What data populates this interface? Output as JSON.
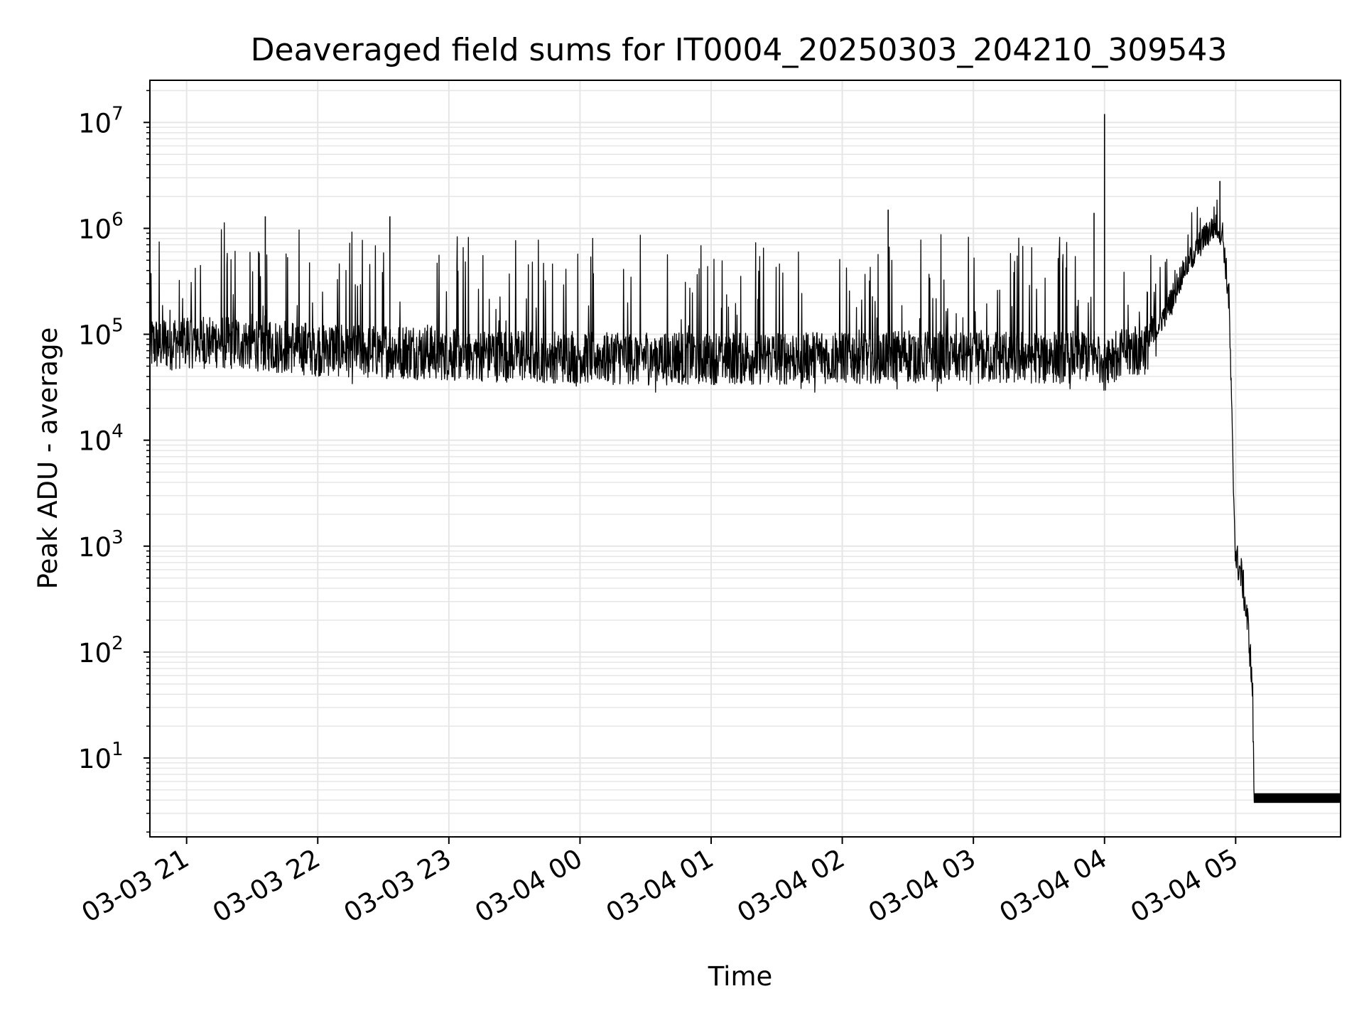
{
  "chart_data": {
    "type": "line",
    "title": "Deaveraged field sums for IT0004_20250303_204210_309543",
    "xlabel": "Time",
    "ylabel": "Peak ADU - average",
    "yscale": "log",
    "grid": true,
    "grid_minor": true,
    "line_color": "#000000",
    "grid_color": "#e6e6e6",
    "x_tick_labels": [
      "03-03 21",
      "03-03 22",
      "03-03 23",
      "03-04 00",
      "03-04 01",
      "03-04 02",
      "03-04 03",
      "03-04 04",
      "03-04 05"
    ],
    "x_tick_hours": [
      21,
      22,
      23,
      24,
      25,
      26,
      27,
      28,
      29
    ],
    "xlim_hours": [
      20.72,
      29.8
    ],
    "y_ticks": [
      {
        "base": "10",
        "exp": "1",
        "value": 10
      },
      {
        "base": "10",
        "exp": "2",
        "value": 100
      },
      {
        "base": "10",
        "exp": "3",
        "value": 1000
      },
      {
        "base": "10",
        "exp": "4",
        "value": 10000
      },
      {
        "base": "10",
        "exp": "5",
        "value": 100000
      },
      {
        "base": "10",
        "exp": "6",
        "value": 1000000
      },
      {
        "base": "10",
        "exp": "7",
        "value": 10000000
      }
    ],
    "ylim": [
      1.8,
      25000000
    ],
    "series": [
      {
        "x_hours": [
          20.72,
          21.0,
          21.5,
          22.0,
          22.5,
          23.0,
          23.5,
          24.0,
          24.5,
          25.0,
          25.5,
          26.0,
          26.5,
          27.0,
          27.5,
          28.0,
          28.01,
          28.02,
          28.3,
          28.45,
          28.6,
          28.75,
          28.85,
          28.9,
          28.95,
          28.98,
          29.0,
          29.05,
          29.1,
          29.13,
          29.14,
          29.3,
          29.5,
          29.8
        ],
        "baseline": [
          80000,
          90000,
          85000,
          75000,
          72000,
          68000,
          66000,
          64000,
          62000,
          63000,
          62000,
          64000,
          65000,
          63000,
          64000,
          65000,
          65000,
          65000,
          75000,
          150000,
          400000,
          800000,
          1100000,
          900000,
          200000,
          5000,
          800,
          500,
          150,
          40,
          4,
          4,
          4,
          4
        ],
        "spikes": [
          {
            "x": 21.6,
            "y": 1300000
          },
          {
            "x": 22.55,
            "y": 1300000
          },
          {
            "x": 26.35,
            "y": 1500000
          },
          {
            "x": 27.92,
            "y": 1400000
          },
          {
            "x": 28.0,
            "y": 12000000
          },
          {
            "x": 28.88,
            "y": 2800000
          }
        ],
        "noise_span_decades": [
          -0.35,
          1.15
        ]
      }
    ]
  }
}
